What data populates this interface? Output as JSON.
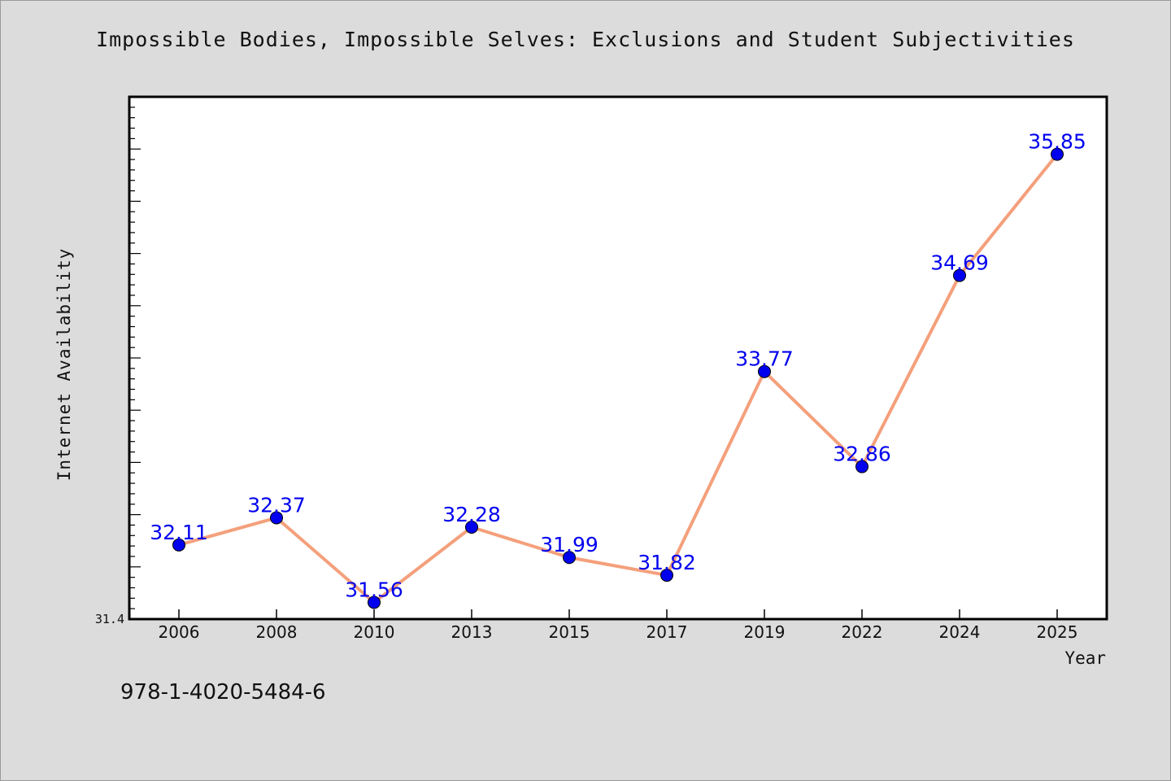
{
  "chart_data": {
    "type": "line",
    "title": "Impossible Bodies, Impossible Selves: Exclusions and Student Subjectivities",
    "xlabel": "Year",
    "ylabel": "Internet Availability",
    "categories": [
      "2006",
      "2008",
      "2010",
      "2013",
      "2015",
      "2017",
      "2019",
      "2022",
      "2024",
      "2025"
    ],
    "series": [
      {
        "values": [
          32.11,
          32.37,
          31.56,
          32.28,
          31.99,
          31.82,
          33.77,
          32.86,
          34.69,
          35.85
        ]
      }
    ],
    "ylim": [
      31.4,
      36.4
    ],
    "yticks_labeled": [
      "31.4"
    ],
    "grid": false,
    "legend": "none",
    "colors": {
      "line": "#f4a07c",
      "marker": "#0000ee",
      "marker_edge": "#000000",
      "data_label": "#0000ee",
      "background": "#dcdcdc",
      "plot_background": "#ffffff"
    }
  },
  "footer": {
    "isbn": "978-1-4020-5484-6"
  }
}
